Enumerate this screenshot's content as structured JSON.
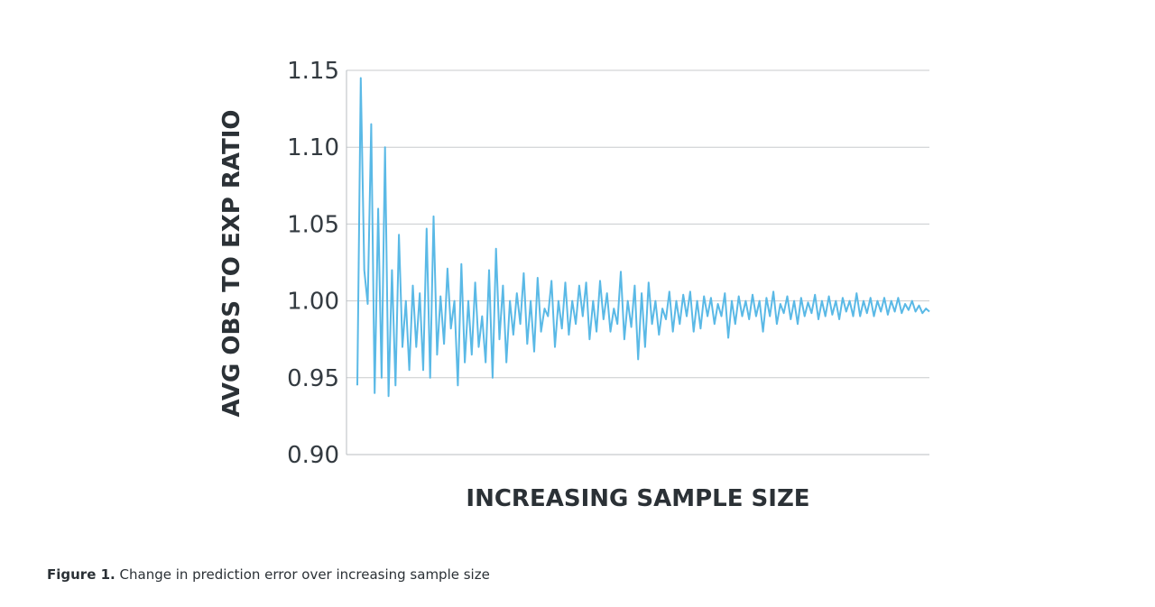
{
  "chart_data": {
    "type": "line",
    "title": "",
    "xlabel": "INCREASING SAMPLE SIZE",
    "ylabel": "AVG OBS TO EXP RATIO",
    "ylim": [
      0.9,
      1.15
    ],
    "yticks": [
      0.9,
      0.95,
      1.0,
      1.05,
      1.1,
      1.15
    ],
    "ytick_labels": [
      "0.90",
      "0.95",
      "1.00",
      "1.05",
      "1.10",
      "1.15"
    ],
    "grid": true,
    "legend": "none",
    "x_ticks_shown": false,
    "series_color": "#5ab9e6",
    "series": [
      {
        "values": [
          0.945,
          1.145,
          1.02,
          0.998,
          1.115,
          0.94,
          1.06,
          0.95,
          1.1,
          0.938,
          1.02,
          0.945,
          1.043,
          0.97,
          1.0,
          0.955,
          1.01,
          0.97,
          1.005,
          0.955,
          1.047,
          0.95,
          1.055,
          0.965,
          1.003,
          0.972,
          1.021,
          0.982,
          1.0,
          0.945,
          1.024,
          0.96,
          1.0,
          0.965,
          1.012,
          0.97,
          0.99,
          0.96,
          1.02,
          0.95,
          1.034,
          0.975,
          1.01,
          0.96,
          1.0,
          0.978,
          1.005,
          0.985,
          1.018,
          0.972,
          1.0,
          0.967,
          1.015,
          0.98,
          0.995,
          0.99,
          1.013,
          0.97,
          1.0,
          0.982,
          1.012,
          0.978,
          1.0,
          0.985,
          1.01,
          0.99,
          1.012,
          0.975,
          1.0,
          0.98,
          1.013,
          0.988,
          1.005,
          0.98,
          0.995,
          0.985,
          1.019,
          0.975,
          1.0,
          0.983,
          1.01,
          0.962,
          1.005,
          0.97,
          1.012,
          0.985,
          1.0,
          0.978,
          0.995,
          0.988,
          1.006,
          0.98,
          1.0,
          0.985,
          1.004,
          0.99,
          1.006,
          0.98,
          1.0,
          0.982,
          1.003,
          0.99,
          1.002,
          0.985,
          0.998,
          0.99,
          1.005,
          0.976,
          1.0,
          0.985,
          1.003,
          0.99,
          1.0,
          0.988,
          1.004,
          0.99,
          1.0,
          0.98,
          1.002,
          0.99,
          1.006,
          0.985,
          0.998,
          0.992,
          1.003,
          0.988,
          1.0,
          0.985,
          1.002,
          0.99,
          0.999,
          0.992,
          1.004,
          0.988,
          1.0,
          0.99,
          1.003,
          0.991,
          1.0,
          0.988,
          1.002,
          0.993,
          1.0,
          0.99,
          1.005,
          0.99,
          1.0,
          0.992,
          1.002,
          0.99,
          1.0,
          0.993,
          1.002,
          0.991,
          1.0,
          0.993,
          1.002,
          0.992,
          0.998,
          0.994,
          1.0,
          0.993,
          0.997,
          0.992,
          0.995,
          0.993
        ]
      }
    ]
  },
  "caption": {
    "label": "Figure 1.",
    "text": "Change in prediction error over increasing sample size"
  }
}
